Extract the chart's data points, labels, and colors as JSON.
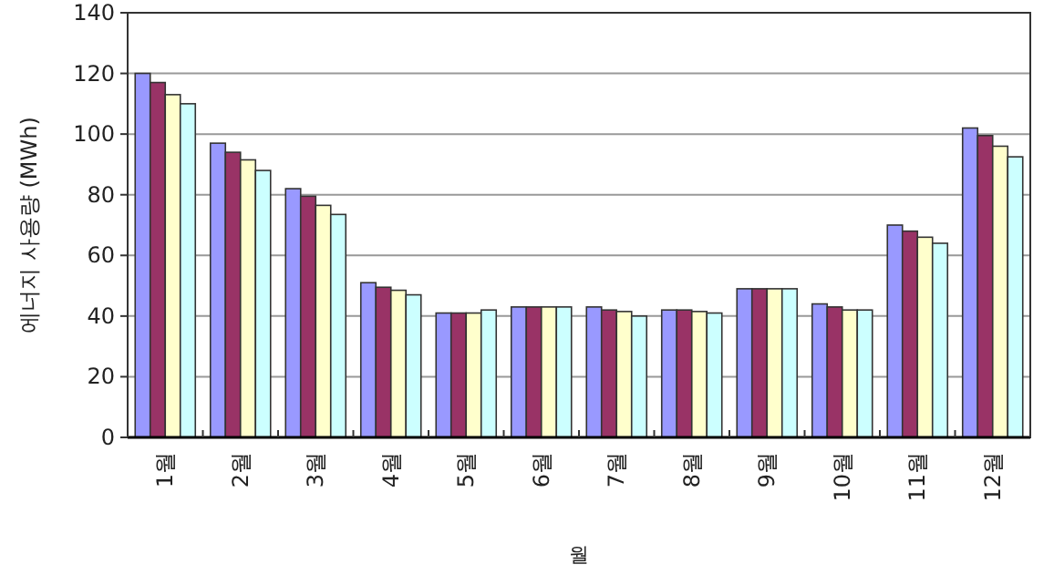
{
  "chart_data": {
    "type": "bar",
    "xlabel": "월",
    "ylabel": "에너지 사용량 (MWh)",
    "categories": [
      "1월",
      "2월",
      "3월",
      "4월",
      "5월",
      "6월",
      "7월",
      "8월",
      "9월",
      "10월",
      "11월",
      "12월"
    ],
    "series": [
      {
        "color": "#9999ff",
        "values": [
          120,
          97,
          82,
          51,
          41,
          43,
          43,
          42,
          49,
          44,
          70,
          102
        ]
      },
      {
        "color": "#993366",
        "values": [
          117,
          94,
          79.5,
          49.5,
          41,
          43,
          42,
          42,
          49,
          43,
          68,
          99.5
        ]
      },
      {
        "color": "#ffffcc",
        "values": [
          113,
          91.5,
          76.5,
          48.5,
          41,
          43,
          41.5,
          41.5,
          49,
          42,
          66,
          96
        ]
      },
      {
        "color": "#ccffff",
        "values": [
          110,
          88,
          73.5,
          47,
          42,
          43,
          40,
          41,
          49,
          42,
          64,
          92.5
        ]
      }
    ],
    "ylim": [
      0,
      140
    ],
    "yticks": [
      0,
      20,
      40,
      60,
      80,
      100,
      120,
      140
    ],
    "grid": "y"
  }
}
